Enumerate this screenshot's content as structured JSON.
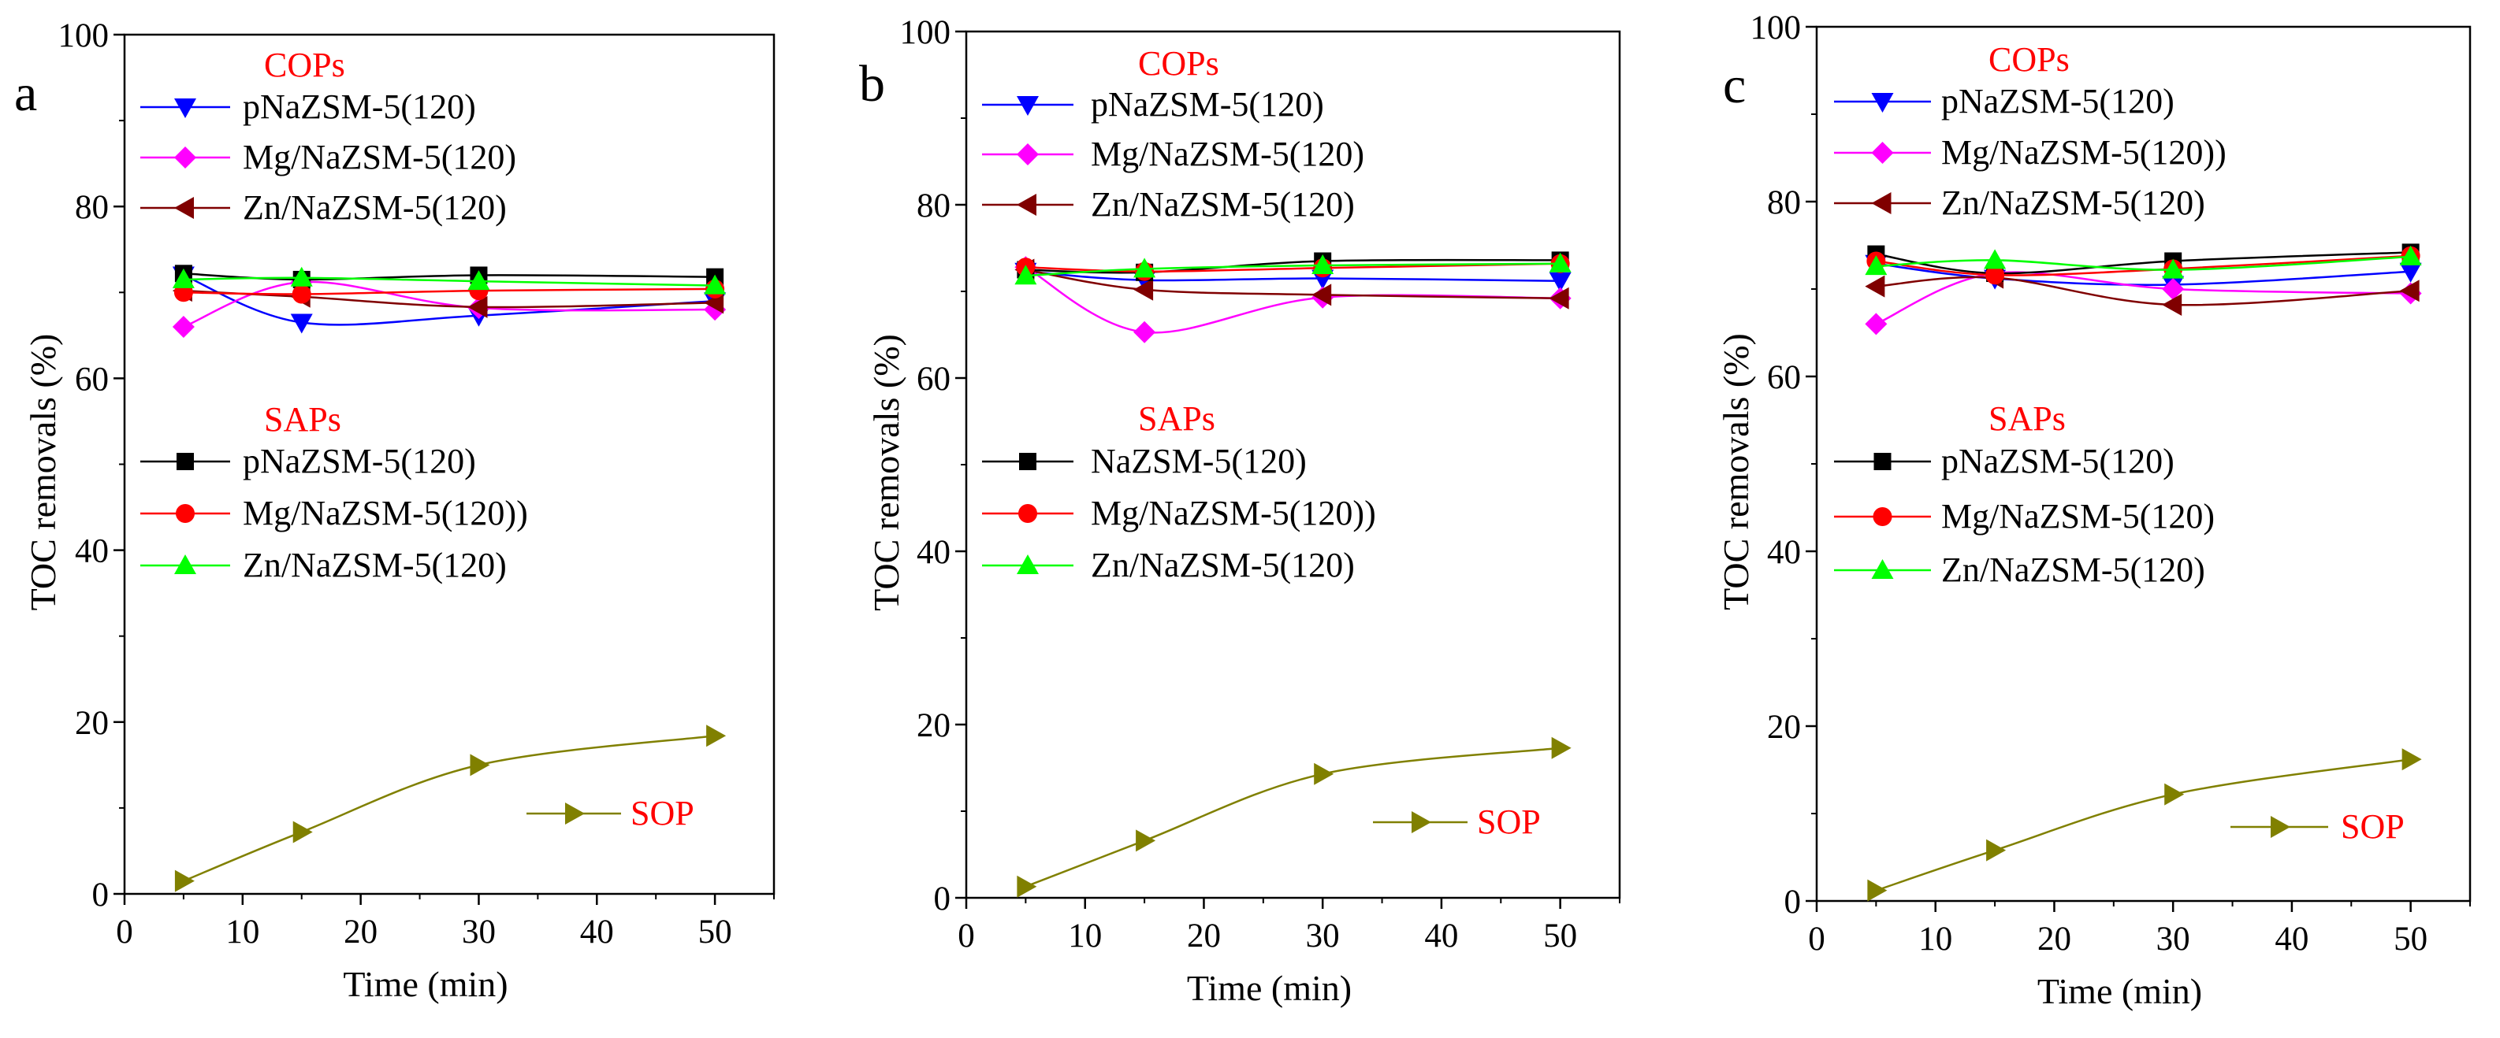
{
  "figure": {
    "colors": {
      "blue": "#0000ff",
      "magenta": "#ff00ff",
      "darkred": "#800000",
      "black": "#000000",
      "red": "#ff0000",
      "green": "#00ff00",
      "olive": "#808000",
      "label_red": "#ff0000"
    }
  },
  "chart_data": [
    {
      "type": "line",
      "panel": "a",
      "xlabel": "Time (min)",
      "ylabel": "TOC removals (%)",
      "xlim": [
        0,
        55
      ],
      "ylim": [
        0,
        100
      ],
      "xticks": [
        0,
        10,
        20,
        30,
        40,
        50
      ],
      "yticks": [
        0,
        20,
        40,
        60,
        80,
        100
      ],
      "x": [
        5,
        15,
        30,
        50
      ],
      "legend_groups": [
        "COPs",
        "SAPs"
      ],
      "series": [
        {
          "name": "pNaZSM-5(120)",
          "group": "COPs",
          "marker": "triangle-down",
          "color": "#0000ff",
          "values": [
            72,
            66.5,
            67.3,
            69
          ]
        },
        {
          "name": "Mg/NaZSM-5(120)",
          "group": "COPs",
          "marker": "diamond",
          "color": "#ff00ff",
          "values": [
            66,
            71.2,
            68.2,
            68
          ]
        },
        {
          "name": "Zn/NaZSM-5(120)",
          "group": "COPs",
          "marker": "triangle-left",
          "color": "#800000",
          "values": [
            70.2,
            69.5,
            68.3,
            68.8
          ]
        },
        {
          "name": "pNaZSM-5(120)",
          "group": "SAPs",
          "marker": "square",
          "color": "#000000",
          "values": [
            72.2,
            71.5,
            72,
            71.8
          ]
        },
        {
          "name": "Mg/NaZSM-5(120))",
          "group": "SAPs",
          "marker": "circle",
          "color": "#ff0000",
          "values": [
            70,
            69.8,
            70.2,
            70.4
          ]
        },
        {
          "name": "Zn/NaZSM-5(120)",
          "group": "SAPs",
          "marker": "triangle-up",
          "color": "#00ff00",
          "values": [
            71.5,
            71.7,
            71.3,
            70.8
          ]
        },
        {
          "name": "SOP",
          "group": "SOP",
          "marker": "triangle-right",
          "color": "#808000",
          "values": [
            1.5,
            7.2,
            15,
            18.4
          ]
        }
      ]
    },
    {
      "type": "line",
      "panel": "b",
      "xlabel": "Time (min)",
      "ylabel": "TOC removals (%)",
      "xlim": [
        0,
        55
      ],
      "ylim": [
        0,
        100
      ],
      "xticks": [
        0,
        10,
        20,
        30,
        40,
        50
      ],
      "yticks": [
        0,
        20,
        40,
        60,
        80,
        100
      ],
      "x": [
        5,
        15,
        30,
        50
      ],
      "legend_groups": [
        "COPs",
        "SAPs"
      ],
      "series": [
        {
          "name": "pNaZSM-5(120)",
          "group": "COPs",
          "marker": "triangle-down",
          "color": "#0000ff",
          "values": [
            72.3,
            71.3,
            71.5,
            71.2
          ]
        },
        {
          "name": "Mg/NaZSM-5(120)",
          "group": "COPs",
          "marker": "diamond",
          "color": "#ff00ff",
          "values": [
            72.8,
            65.3,
            69.3,
            69.2
          ]
        },
        {
          "name": "Zn/NaZSM-5(120)",
          "group": "COPs",
          "marker": "triangle-left",
          "color": "#800000",
          "values": [
            72.5,
            70.2,
            69.6,
            69.2
          ]
        },
        {
          "name": "NaZSM-5(120)",
          "group": "SAPs",
          "marker": "square",
          "color": "#000000",
          "values": [
            72.5,
            72.2,
            73.5,
            73.6
          ]
        },
        {
          "name": "Mg/NaZSM-5(120))",
          "group": "SAPs",
          "marker": "circle",
          "color": "#ff0000",
          "values": [
            72.8,
            72.3,
            72.7,
            73.2
          ]
        },
        {
          "name": "Zn/NaZSM-5(120)",
          "group": "SAPs",
          "marker": "triangle-up",
          "color": "#00ff00",
          "values": [
            71.8,
            72.6,
            73,
            73.2
          ]
        },
        {
          "name": "SOP",
          "group": "SOP",
          "marker": "triangle-right",
          "color": "#808000",
          "values": [
            1.3,
            6.6,
            14.3,
            17.3
          ]
        }
      ]
    },
    {
      "type": "line",
      "panel": "c",
      "xlabel": "Time (min)",
      "ylabel": "TOC removals (%)",
      "xlim": [
        0,
        55
      ],
      "ylim": [
        0,
        100
      ],
      "xticks": [
        0,
        10,
        20,
        30,
        40,
        50
      ],
      "yticks": [
        0,
        20,
        40,
        60,
        80,
        100
      ],
      "x": [
        5,
        15,
        30,
        50
      ],
      "legend_groups": [
        "COPs",
        "SAPs"
      ],
      "series": [
        {
          "name": "pNaZSM-5(120)",
          "group": "COPs",
          "marker": "triangle-down",
          "color": "#0000ff",
          "values": [
            72.9,
            71.2,
            70.5,
            72
          ]
        },
        {
          "name": "Mg/NaZSM-5(120))",
          "group": "COPs",
          "marker": "diamond",
          "color": "#ff00ff",
          "values": [
            66,
            71.8,
            70,
            69.5
          ]
        },
        {
          "name": "Zn/NaZSM-5(120)",
          "group": "COPs",
          "marker": "triangle-left",
          "color": "#800000",
          "values": [
            70.3,
            71.3,
            68.2,
            69.8
          ]
        },
        {
          "name": "pNaZSM-5(120)",
          "group": "SAPs",
          "marker": "square",
          "color": "#000000",
          "values": [
            74,
            71.8,
            73.2,
            74.2
          ]
        },
        {
          "name": "Mg/NaZSM-5(120)",
          "group": "SAPs",
          "marker": "circle",
          "color": "#ff0000",
          "values": [
            73.2,
            71.6,
            72.3,
            73.8
          ]
        },
        {
          "name": "Zn/NaZSM-5(120)",
          "group": "SAPs",
          "marker": "triangle-up",
          "color": "#00ff00",
          "values": [
            72.6,
            73.3,
            72.2,
            73.7
          ]
        },
        {
          "name": "SOP",
          "group": "SOP",
          "marker": "triangle-right",
          "color": "#808000",
          "values": [
            1.2,
            5.8,
            12.2,
            16.2
          ]
        }
      ]
    }
  ]
}
